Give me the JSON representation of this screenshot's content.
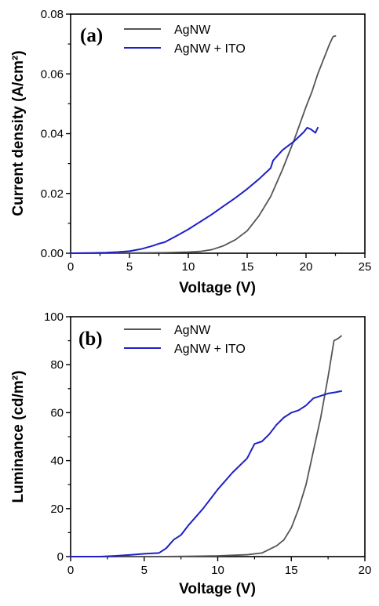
{
  "chart_data": [
    {
      "type": "line",
      "panel_label": "(a)",
      "xlabel": "Voltage (V)",
      "ylabel": "Current density (A/cm²)",
      "xlim": [
        0,
        25
      ],
      "ylim": [
        0,
        0.08
      ],
      "x_ticks": [
        0,
        5,
        10,
        15,
        20,
        25
      ],
      "y_ticks": [
        0.0,
        0.02,
        0.04,
        0.06,
        0.08
      ],
      "x_tick_labels": [
        "0",
        "5",
        "10",
        "15",
        "20",
        "25"
      ],
      "y_tick_labels": [
        "0.00",
        "0.02",
        "0.04",
        "0.06",
        "0.08"
      ],
      "grid": false,
      "legend_position": "top-center",
      "series": [
        {
          "name": "AgNW",
          "color": "#555555",
          "points": [
            [
              0,
              0
            ],
            [
              5,
              0.0001
            ],
            [
              8,
              0.0002
            ],
            [
              10,
              0.0004
            ],
            [
              11,
              0.0006
            ],
            [
              12,
              0.0012
            ],
            [
              13,
              0.0025
            ],
            [
              14,
              0.0045
            ],
            [
              15,
              0.0075
            ],
            [
              16,
              0.0125
            ],
            [
              17,
              0.019
            ],
            [
              18,
              0.028
            ],
            [
              19,
              0.038
            ],
            [
              20,
              0.049
            ],
            [
              20.5,
              0.054
            ],
            [
              21,
              0.06
            ],
            [
              21.5,
              0.065
            ],
            [
              22,
              0.07
            ],
            [
              22.3,
              0.0725
            ],
            [
              22.5,
              0.0727
            ]
          ]
        },
        {
          "name": "AgNW + ITO",
          "color": "#1f1fc8",
          "points": [
            [
              0,
              0
            ],
            [
              2,
              0.0001
            ],
            [
              3,
              0.0002
            ],
            [
              4,
              0.0004
            ],
            [
              5,
              0.0007
            ],
            [
              6,
              0.0014
            ],
            [
              7,
              0.0025
            ],
            [
              7.5,
              0.0032
            ],
            [
              8,
              0.0037
            ],
            [
              9,
              0.0058
            ],
            [
              10,
              0.008
            ],
            [
              11,
              0.0105
            ],
            [
              12,
              0.013
            ],
            [
              13,
              0.0158
            ],
            [
              14,
              0.0185
            ],
            [
              15,
              0.0215
            ],
            [
              16,
              0.0248
            ],
            [
              17,
              0.0285
            ],
            [
              17.2,
              0.031
            ],
            [
              18,
              0.0345
            ],
            [
              19,
              0.0375
            ],
            [
              19.8,
              0.0405
            ],
            [
              20.1,
              0.042
            ],
            [
              20.4,
              0.0415
            ],
            [
              20.8,
              0.0403
            ],
            [
              21,
              0.042
            ]
          ]
        }
      ]
    },
    {
      "type": "line",
      "panel_label": "(b)",
      "xlabel": "Voltage (V)",
      "ylabel": "Luminance (cd/m²)",
      "xlim": [
        0,
        20
      ],
      "ylim": [
        0,
        100
      ],
      "x_ticks": [
        0,
        5,
        10,
        15,
        20
      ],
      "y_ticks": [
        0,
        20,
        40,
        60,
        80,
        100
      ],
      "x_tick_labels": [
        "0",
        "5",
        "10",
        "15",
        "20"
      ],
      "y_tick_labels": [
        "0",
        "20",
        "40",
        "60",
        "80",
        "100"
      ],
      "grid": false,
      "legend_position": "top-center",
      "series": [
        {
          "name": "AgNW",
          "color": "#555555",
          "points": [
            [
              0,
              0
            ],
            [
              6,
              0
            ],
            [
              10,
              0.3
            ],
            [
              12,
              0.8
            ],
            [
              13,
              1.5
            ],
            [
              13.5,
              3
            ],
            [
              14,
              4.5
            ],
            [
              14.5,
              7
            ],
            [
              15,
              12
            ],
            [
              15.5,
              20
            ],
            [
              16,
              30
            ],
            [
              16.5,
              44
            ],
            [
              17,
              58
            ],
            [
              17.5,
              75
            ],
            [
              17.9,
              90
            ],
            [
              18.2,
              91
            ],
            [
              18.4,
              92
            ]
          ]
        },
        {
          "name": "AgNW + ITO",
          "color": "#1f1fc8",
          "points": [
            [
              0,
              0
            ],
            [
              2,
              0
            ],
            [
              3,
              0.3
            ],
            [
              4,
              0.7
            ],
            [
              5,
              1.2
            ],
            [
              6,
              1.5
            ],
            [
              6.5,
              3.5
            ],
            [
              7,
              7
            ],
            [
              7.5,
              9
            ],
            [
              8,
              13
            ],
            [
              9,
              20
            ],
            [
              10,
              28
            ],
            [
              11,
              35
            ],
            [
              12,
              41
            ],
            [
              12.5,
              47
            ],
            [
              13,
              48
            ],
            [
              13.5,
              51
            ],
            [
              14,
              55
            ],
            [
              14.5,
              58
            ],
            [
              15,
              60
            ],
            [
              15.5,
              61
            ],
            [
              16,
              63
            ],
            [
              16.5,
              66
            ],
            [
              17,
              67
            ],
            [
              17.5,
              68
            ],
            [
              18,
              68.5
            ],
            [
              18.4,
              69
            ]
          ]
        }
      ]
    }
  ]
}
